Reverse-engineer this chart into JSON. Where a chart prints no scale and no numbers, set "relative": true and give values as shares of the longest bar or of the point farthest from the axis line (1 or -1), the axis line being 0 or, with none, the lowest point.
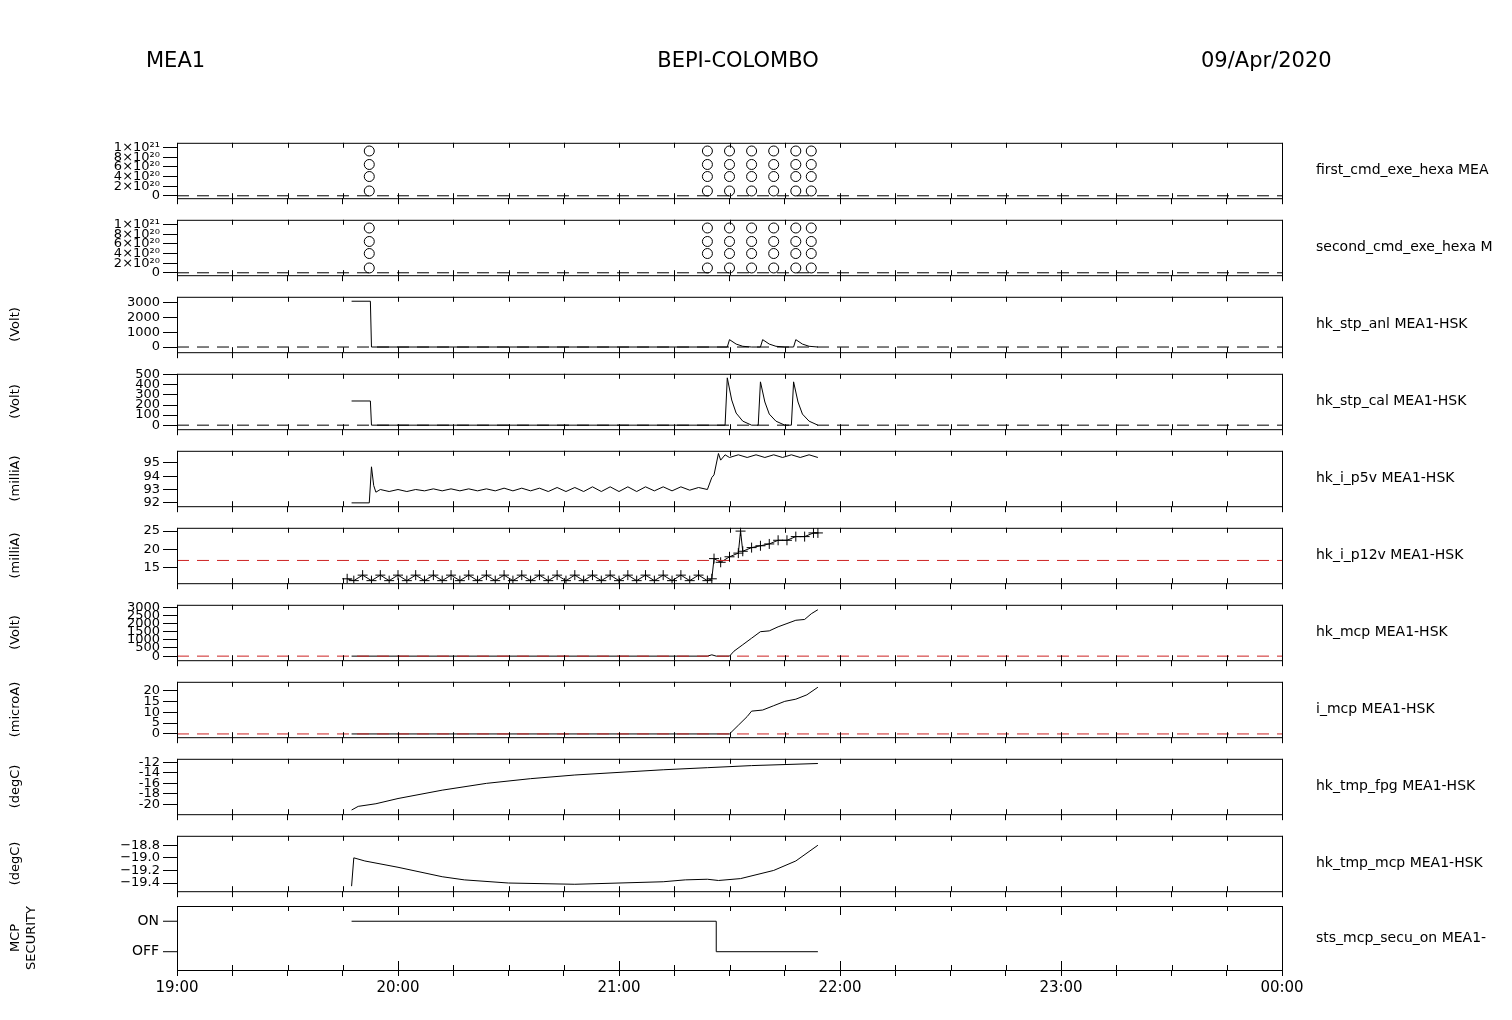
{
  "chart_data": [
    {
      "type": "scatter",
      "title": "BEPI-COLOMBO",
      "annotations": [
        "MEA1",
        "09/Apr/2020"
      ],
      "marker": "circle",
      "tick_labels": "y",
      "xlim": [
        19,
        24
      ],
      "xticks": [
        {
          "value": 19,
          "label": null
        },
        {
          "value": 19.25,
          "label": null
        },
        {
          "value": 19.5,
          "label": null
        },
        {
          "value": 19.75,
          "label": null
        },
        {
          "value": 20,
          "label": null
        },
        {
          "value": 20.25,
          "label": null
        },
        {
          "value": 20.5,
          "label": null
        },
        {
          "value": 20.75,
          "label": null
        },
        {
          "value": 21,
          "label": null
        },
        {
          "value": 21.25,
          "label": null
        },
        {
          "value": 21.5,
          "label": null
        },
        {
          "value": 21.75,
          "label": null
        },
        {
          "value": 22,
          "label": null
        },
        {
          "value": 22.25,
          "label": null
        },
        {
          "value": 22.5,
          "label": null
        },
        {
          "value": 22.75,
          "label": null
        },
        {
          "value": 23,
          "label": null
        },
        {
          "value": 23.25,
          "label": null
        },
        {
          "value": 23.5,
          "label": null
        },
        {
          "value": 23.75,
          "label": null
        },
        {
          "value": 24,
          "label": null
        }
      ],
      "ylim": [
        -5e+19,
        1.1e+21
      ],
      "yticks": [
        0,
        {
          "value": 2e+20,
          "label": "2×10²⁰"
        },
        {
          "value": 4e+20,
          "label": "4×10²⁰"
        },
        {
          "value": 6e+20,
          "label": "6×10²⁰"
        },
        {
          "value": 8e+20,
          "label": "8×10²⁰"
        },
        {
          "value": 1e+21,
          "label": "1×10²¹"
        }
      ],
      "ref_lines": [
        {
          "axis": "y",
          "value": 0,
          "color": "#000000",
          "line_style": "dashed"
        }
      ],
      "series": [
        {
          "name": "first_cmd_exe_hexa MEA",
          "color": "#000000",
          "x": [
            19.87,
            19.87,
            19.87,
            19.87,
            21.4,
            21.4,
            21.4,
            21.4,
            21.5,
            21.5,
            21.5,
            21.5,
            21.6,
            21.6,
            21.6,
            21.6,
            21.7,
            21.7,
            21.7,
            21.7,
            21.8,
            21.8,
            21.8,
            21.8,
            21.87,
            21.87,
            21.87,
            21.87
          ],
          "values": [
            1e+20,
            4e+20,
            6.5e+20,
            9.3e+20,
            1e+20,
            4e+20,
            6.5e+20,
            9.3e+20,
            1e+20,
            4e+20,
            6.5e+20,
            9.3e+20,
            1e+20,
            4e+20,
            6.5e+20,
            9.3e+20,
            1e+20,
            4e+20,
            6.5e+20,
            9.3e+20,
            1e+20,
            4e+20,
            6.5e+20,
            9.3e+20,
            1e+20,
            4e+20,
            6.5e+20,
            9.3e+20
          ]
        }
      ]
    },
    {
      "type": "scatter",
      "marker": "circle",
      "tick_labels": "y",
      "xlim": [
        19,
        24
      ],
      "xticks": [
        {
          "value": 19,
          "label": null
        },
        {
          "value": 19.25,
          "label": null
        },
        {
          "value": 19.5,
          "label": null
        },
        {
          "value": 19.75,
          "label": null
        },
        {
          "value": 20,
          "label": null
        },
        {
          "value": 20.25,
          "label": null
        },
        {
          "value": 20.5,
          "label": null
        },
        {
          "value": 20.75,
          "label": null
        },
        {
          "value": 21,
          "label": null
        },
        {
          "value": 21.25,
          "label": null
        },
        {
          "value": 21.5,
          "label": null
        },
        {
          "value": 21.75,
          "label": null
        },
        {
          "value": 22,
          "label": null
        },
        {
          "value": 22.25,
          "label": null
        },
        {
          "value": 22.5,
          "label": null
        },
        {
          "value": 22.75,
          "label": null
        },
        {
          "value": 23,
          "label": null
        },
        {
          "value": 23.25,
          "label": null
        },
        {
          "value": 23.5,
          "label": null
        },
        {
          "value": 23.75,
          "label": null
        },
        {
          "value": 24,
          "label": null
        }
      ],
      "ylim": [
        -5e+19,
        1.1e+21
      ],
      "yticks": [
        0,
        {
          "value": 2e+20,
          "label": "2×10²⁰"
        },
        {
          "value": 4e+20,
          "label": "4×10²⁰"
        },
        {
          "value": 6e+20,
          "label": "6×10²⁰"
        },
        {
          "value": 8e+20,
          "label": "8×10²⁰"
        },
        {
          "value": 1e+21,
          "label": "1×10²¹"
        }
      ],
      "ref_lines": [
        {
          "axis": "y",
          "value": 0,
          "color": "#000000",
          "line_style": "dashed"
        }
      ],
      "series": [
        {
          "name": "second_cmd_exe_hexa M",
          "color": "#000000",
          "x": [
            19.87,
            19.87,
            19.87,
            19.87,
            21.4,
            21.4,
            21.4,
            21.4,
            21.5,
            21.5,
            21.5,
            21.5,
            21.6,
            21.6,
            21.6,
            21.6,
            21.7,
            21.7,
            21.7,
            21.7,
            21.8,
            21.8,
            21.8,
            21.8,
            21.87,
            21.87,
            21.87,
            21.87
          ],
          "values": [
            1e+20,
            4e+20,
            6.5e+20,
            9.3e+20,
            1e+20,
            4e+20,
            6.5e+20,
            9.3e+20,
            1e+20,
            4e+20,
            6.5e+20,
            9.3e+20,
            1e+20,
            4e+20,
            6.5e+20,
            9.3e+20,
            1e+20,
            4e+20,
            6.5e+20,
            9.3e+20,
            1e+20,
            4e+20,
            6.5e+20,
            9.3e+20,
            1e+20,
            4e+20,
            6.5e+20,
            9.3e+20
          ]
        }
      ]
    },
    {
      "type": "line",
      "ylabel": "(Volt)",
      "tick_labels": "y",
      "xlim": [
        19,
        24
      ],
      "xticks": [
        {
          "value": 19,
          "label": null
        },
        {
          "value": 19.25,
          "label": null
        },
        {
          "value": 19.5,
          "label": null
        },
        {
          "value": 19.75,
          "label": null
        },
        {
          "value": 20,
          "label": null
        },
        {
          "value": 20.25,
          "label": null
        },
        {
          "value": 20.5,
          "label": null
        },
        {
          "value": 20.75,
          "label": null
        },
        {
          "value": 21,
          "label": null
        },
        {
          "value": 21.25,
          "label": null
        },
        {
          "value": 21.5,
          "label": null
        },
        {
          "value": 21.75,
          "label": null
        },
        {
          "value": 22,
          "label": null
        },
        {
          "value": 22.25,
          "label": null
        },
        {
          "value": 22.5,
          "label": null
        },
        {
          "value": 22.75,
          "label": null
        },
        {
          "value": 23,
          "label": null
        },
        {
          "value": 23.25,
          "label": null
        },
        {
          "value": 23.5,
          "label": null
        },
        {
          "value": 23.75,
          "label": null
        },
        {
          "value": 24,
          "label": null
        }
      ],
      "ylim": [
        -350,
        3400
      ],
      "yticks": [
        0,
        1000,
        2000,
        3000
      ],
      "ref_lines": [
        {
          "axis": "y",
          "value": 0,
          "color": "#000000",
          "line_style": "dashed"
        }
      ],
      "series": [
        {
          "name": "hk_stp_anl MEA1-HSK",
          "color": "#000000",
          "x": [
            19.79,
            19.875,
            19.88,
            21.49,
            21.5,
            21.53,
            21.56,
            21.6,
            21.64,
            21.65,
            21.68,
            21.71,
            21.75,
            21.79,
            21.8,
            21.83,
            21.86,
            21.9
          ],
          "values": [
            3100,
            3100,
            0,
            0,
            500,
            200,
            50,
            0,
            0,
            500,
            200,
            50,
            0,
            0,
            500,
            200,
            50,
            0
          ]
        }
      ]
    },
    {
      "type": "line",
      "ylabel": "(Volt)",
      "tick_labels": "y",
      "xlim": [
        19,
        24
      ],
      "xticks": [
        {
          "value": 19,
          "label": null
        },
        {
          "value": 19.25,
          "label": null
        },
        {
          "value": 19.5,
          "label": null
        },
        {
          "value": 19.75,
          "label": null
        },
        {
          "value": 20,
          "label": null
        },
        {
          "value": 20.25,
          "label": null
        },
        {
          "value": 20.5,
          "label": null
        },
        {
          "value": 20.75,
          "label": null
        },
        {
          "value": 21,
          "label": null
        },
        {
          "value": 21.25,
          "label": null
        },
        {
          "value": 21.5,
          "label": null
        },
        {
          "value": 21.75,
          "label": null
        },
        {
          "value": 22,
          "label": null
        },
        {
          "value": 22.25,
          "label": null
        },
        {
          "value": 22.5,
          "label": null
        },
        {
          "value": 22.75,
          "label": null
        },
        {
          "value": 23,
          "label": null
        },
        {
          "value": 23.25,
          "label": null
        },
        {
          "value": 23.5,
          "label": null
        },
        {
          "value": 23.75,
          "label": null
        },
        {
          "value": 24,
          "label": null
        }
      ],
      "ylim": [
        -40,
        510
      ],
      "yticks": [
        0,
        100,
        200,
        300,
        400,
        500
      ],
      "ref_lines": [
        {
          "axis": "y",
          "value": 0,
          "color": "#000000",
          "line_style": "dashed"
        }
      ],
      "series": [
        {
          "name": "hk_stp_cal MEA1-HSK",
          "color": "#000000",
          "x": [
            19.79,
            19.875,
            19.88,
            21.48,
            21.49,
            21.51,
            21.53,
            21.56,
            21.6,
            21.63,
            21.64,
            21.66,
            21.68,
            21.71,
            21.75,
            21.78,
            21.79,
            21.81,
            21.83,
            21.86,
            21.9
          ],
          "values": [
            240,
            240,
            0,
            0,
            470,
            250,
            120,
            40,
            0,
            0,
            430,
            230,
            110,
            40,
            0,
            0,
            430,
            230,
            110,
            40,
            0
          ]
        }
      ]
    },
    {
      "type": "line",
      "ylabel": "(milliA)",
      "tick_labels": "y",
      "xlim": [
        19,
        24
      ],
      "xticks": [
        {
          "value": 19,
          "label": null
        },
        {
          "value": 19.25,
          "label": null
        },
        {
          "value": 19.5,
          "label": null
        },
        {
          "value": 19.75,
          "label": null
        },
        {
          "value": 20,
          "label": null
        },
        {
          "value": 20.25,
          "label": null
        },
        {
          "value": 20.5,
          "label": null
        },
        {
          "value": 20.75,
          "label": null
        },
        {
          "value": 21,
          "label": null
        },
        {
          "value": 21.25,
          "label": null
        },
        {
          "value": 21.5,
          "label": null
        },
        {
          "value": 21.75,
          "label": null
        },
        {
          "value": 22,
          "label": null
        },
        {
          "value": 22.25,
          "label": null
        },
        {
          "value": 22.5,
          "label": null
        },
        {
          "value": 22.75,
          "label": null
        },
        {
          "value": 23,
          "label": null
        },
        {
          "value": 23.25,
          "label": null
        },
        {
          "value": 23.5,
          "label": null
        },
        {
          "value": 23.75,
          "label": null
        },
        {
          "value": 24,
          "label": null
        }
      ],
      "ylim": [
        91.75,
        95.9
      ],
      "yticks": [
        92,
        93,
        94,
        95
      ],
      "series": [
        {
          "name": "hk_i_p5v MEA1-HSK",
          "color": "#000000",
          "x": [
            19.79,
            19.87,
            19.88,
            19.89,
            19.9,
            19.92,
            19.96,
            20.0,
            20.04,
            20.08,
            20.12,
            20.16,
            20.2,
            20.24,
            20.28,
            20.32,
            20.36,
            20.4,
            20.44,
            20.48,
            20.52,
            20.56,
            20.6,
            20.64,
            20.68,
            20.72,
            20.76,
            20.8,
            20.84,
            20.88,
            20.92,
            20.96,
            21.0,
            21.04,
            21.08,
            21.12,
            21.16,
            21.2,
            21.24,
            21.28,
            21.32,
            21.36,
            21.4,
            21.42,
            21.43,
            21.45,
            21.46,
            21.48,
            21.5,
            21.54,
            21.58,
            21.62,
            21.66,
            21.7,
            21.74,
            21.78,
            21.82,
            21.86,
            21.9
          ],
          "values": [
            92.0,
            92.0,
            94.7,
            93.3,
            92.8,
            93.0,
            92.85,
            93.0,
            92.85,
            93.0,
            92.9,
            93.05,
            92.9,
            93.05,
            92.9,
            93.05,
            92.9,
            93.05,
            92.9,
            93.1,
            92.9,
            93.1,
            92.9,
            93.1,
            92.85,
            93.15,
            92.85,
            93.15,
            92.85,
            93.2,
            92.85,
            93.2,
            92.85,
            93.2,
            92.85,
            93.2,
            92.9,
            93.2,
            92.9,
            93.2,
            92.95,
            93.15,
            93.0,
            93.9,
            94.1,
            95.7,
            95.2,
            95.6,
            95.4,
            95.6,
            95.4,
            95.6,
            95.4,
            95.6,
            95.4,
            95.6,
            95.4,
            95.6,
            95.4
          ]
        }
      ]
    },
    {
      "type": "line",
      "ylabel": "(milliA)",
      "marker": "cross",
      "tick_labels": "y",
      "xlim": [
        19,
        24
      ],
      "xticks": [
        {
          "value": 19,
          "label": null
        },
        {
          "value": 19.25,
          "label": null
        },
        {
          "value": 19.5,
          "label": null
        },
        {
          "value": 19.75,
          "label": null
        },
        {
          "value": 20,
          "label": null
        },
        {
          "value": 20.25,
          "label": null
        },
        {
          "value": 20.5,
          "label": null
        },
        {
          "value": 20.75,
          "label": null
        },
        {
          "value": 21,
          "label": null
        },
        {
          "value": 21.25,
          "label": null
        },
        {
          "value": 21.5,
          "label": null
        },
        {
          "value": 21.75,
          "label": null
        },
        {
          "value": 22,
          "label": null
        },
        {
          "value": 22.25,
          "label": null
        },
        {
          "value": 22.5,
          "label": null
        },
        {
          "value": 22.75,
          "label": null
        },
        {
          "value": 23,
          "label": null
        },
        {
          "value": 23.25,
          "label": null
        },
        {
          "value": 23.5,
          "label": null
        },
        {
          "value": 23.75,
          "label": null
        },
        {
          "value": 24,
          "label": null
        }
      ],
      "ylim": [
        10.8,
        25.9
      ],
      "yticks": [
        15,
        20,
        25
      ],
      "ref_lines": [
        {
          "axis": "y",
          "value": 17,
          "color": "#cc2222",
          "line_style": "dashed"
        }
      ],
      "series": [
        {
          "name": "hk_i_p12v MEA1-HSK",
          "color": "#000000",
          "x": [
            19.77,
            19.8,
            19.84,
            19.88,
            19.92,
            19.96,
            20.0,
            20.04,
            20.08,
            20.12,
            20.16,
            20.2,
            20.24,
            20.28,
            20.32,
            20.36,
            20.4,
            20.44,
            20.48,
            20.52,
            20.56,
            20.6,
            20.64,
            20.68,
            20.72,
            20.76,
            20.8,
            20.84,
            20.88,
            20.92,
            20.96,
            21.0,
            21.04,
            21.08,
            21.12,
            21.16,
            21.2,
            21.24,
            21.28,
            21.32,
            21.36,
            21.4,
            21.42,
            21.43,
            21.46,
            21.5,
            21.54,
            21.55,
            21.56,
            21.6,
            21.64,
            21.68,
            21.72,
            21.76,
            21.8,
            21.84,
            21.88,
            21.9
          ],
          "values": [
            12,
            11.5,
            13,
            11.5,
            13,
            11.5,
            13,
            11.5,
            13,
            11.5,
            13,
            11.5,
            13,
            11.5,
            13,
            11.5,
            13,
            11.5,
            13,
            11.5,
            13,
            11.5,
            13,
            11.5,
            13,
            11.5,
            13,
            11.5,
            13,
            11.5,
            13,
            11.5,
            13,
            11.5,
            13,
            11.5,
            13,
            11.5,
            13,
            11.5,
            13,
            11.5,
            12,
            17.5,
            16.5,
            18,
            19,
            25,
            19.5,
            20.5,
            21,
            21.5,
            22.5,
            22.5,
            23.5,
            23.5,
            24.5,
            24.5
          ]
        }
      ]
    },
    {
      "type": "line",
      "ylabel": "(Volt)",
      "tick_labels": "y",
      "xlim": [
        19,
        24
      ],
      "xticks": [
        {
          "value": 19,
          "label": null
        },
        {
          "value": 19.25,
          "label": null
        },
        {
          "value": 19.5,
          "label": null
        },
        {
          "value": 19.75,
          "label": null
        },
        {
          "value": 20,
          "label": null
        },
        {
          "value": 20.25,
          "label": null
        },
        {
          "value": 20.5,
          "label": null
        },
        {
          "value": 20.75,
          "label": null
        },
        {
          "value": 21,
          "label": null
        },
        {
          "value": 21.25,
          "label": null
        },
        {
          "value": 21.5,
          "label": null
        },
        {
          "value": 21.75,
          "label": null
        },
        {
          "value": 22,
          "label": null
        },
        {
          "value": 22.25,
          "label": null
        },
        {
          "value": 22.5,
          "label": null
        },
        {
          "value": 22.75,
          "label": null
        },
        {
          "value": 23,
          "label": null
        },
        {
          "value": 23.25,
          "label": null
        },
        {
          "value": 23.5,
          "label": null
        },
        {
          "value": 23.75,
          "label": null
        },
        {
          "value": 24,
          "label": null
        }
      ],
      "ylim": [
        -250,
        3150
      ],
      "yticks": [
        0,
        500,
        1000,
        1500,
        2000,
        2500,
        3000
      ],
      "ref_lines": [
        {
          "axis": "y",
          "value": 0,
          "color": "#cc2222",
          "line_style": "dashed"
        }
      ],
      "series": [
        {
          "name": "hk_mcp MEA1-HSK",
          "color": "#000000",
          "x": [
            19.79,
            21.4,
            21.42,
            21.44,
            21.48,
            21.5,
            21.52,
            21.56,
            21.6,
            21.64,
            21.68,
            21.72,
            21.76,
            21.8,
            21.84,
            21.87,
            21.9
          ],
          "values": [
            0,
            0,
            80,
            0,
            0,
            0,
            300,
            700,
            1100,
            1500,
            1550,
            1800,
            2000,
            2200,
            2250,
            2600,
            2850
          ]
        }
      ]
    },
    {
      "type": "line",
      "ylabel": "(microA)",
      "tick_labels": "y",
      "xlim": [
        19,
        24
      ],
      "xticks": [
        {
          "value": 19,
          "label": null
        },
        {
          "value": 19.25,
          "label": null
        },
        {
          "value": 19.5,
          "label": null
        },
        {
          "value": 19.75,
          "label": null
        },
        {
          "value": 20,
          "label": null
        },
        {
          "value": 20.25,
          "label": null
        },
        {
          "value": 20.5,
          "label": null
        },
        {
          "value": 20.75,
          "label": null
        },
        {
          "value": 21,
          "label": null
        },
        {
          "value": 21.25,
          "label": null
        },
        {
          "value": 21.5,
          "label": null
        },
        {
          "value": 21.75,
          "label": null
        },
        {
          "value": 22,
          "label": null
        },
        {
          "value": 22.25,
          "label": null
        },
        {
          "value": 22.5,
          "label": null
        },
        {
          "value": 22.75,
          "label": null
        },
        {
          "value": 23,
          "label": null
        },
        {
          "value": 23.25,
          "label": null
        },
        {
          "value": 23.5,
          "label": null
        },
        {
          "value": 23.75,
          "label": null
        },
        {
          "value": 24,
          "label": null
        }
      ],
      "ylim": [
        -1.5,
        24
      ],
      "yticks": [
        0,
        5,
        10,
        15,
        20
      ],
      "ref_lines": [
        {
          "axis": "y",
          "value": 0,
          "color": "#cc2222",
          "line_style": "dashed"
        }
      ],
      "series": [
        {
          "name": "i_mcp MEA1-HSK",
          "color": "#000000",
          "x": [
            19.79,
            21.5,
            21.54,
            21.58,
            21.6,
            21.65,
            21.7,
            21.75,
            21.8,
            21.85,
            21.9
          ],
          "values": [
            0,
            0,
            4,
            8,
            10.5,
            11,
            13,
            15,
            16,
            18,
            21.5
          ]
        }
      ]
    },
    {
      "type": "line",
      "ylabel": "(degC)",
      "tick_labels": "y",
      "xlim": [
        19,
        24
      ],
      "xticks": [
        {
          "value": 19,
          "label": null
        },
        {
          "value": 19.25,
          "label": null
        },
        {
          "value": 19.5,
          "label": null
        },
        {
          "value": 19.75,
          "label": null
        },
        {
          "value": 20,
          "label": null
        },
        {
          "value": 20.25,
          "label": null
        },
        {
          "value": 20.5,
          "label": null
        },
        {
          "value": 20.75,
          "label": null
        },
        {
          "value": 21,
          "label": null
        },
        {
          "value": 21.25,
          "label": null
        },
        {
          "value": 21.5,
          "label": null
        },
        {
          "value": 21.75,
          "label": null
        },
        {
          "value": 22,
          "label": null
        },
        {
          "value": 22.25,
          "label": null
        },
        {
          "value": 22.5,
          "label": null
        },
        {
          "value": 22.75,
          "label": null
        },
        {
          "value": 23,
          "label": null
        },
        {
          "value": 23.25,
          "label": null
        },
        {
          "value": 23.5,
          "label": null
        },
        {
          "value": 23.75,
          "label": null
        },
        {
          "value": 24,
          "label": null
        }
      ],
      "ylim": [
        -21.9,
        -11.3
      ],
      "yticks": [
        -20,
        -18,
        -16,
        -14,
        -12
      ],
      "series": [
        {
          "name": "hk_tmp_fpg MEA1-HSK",
          "color": "#000000",
          "x": [
            19.79,
            19.82,
            19.9,
            20.0,
            20.2,
            20.4,
            20.6,
            20.8,
            21.0,
            21.2,
            21.4,
            21.6,
            21.9
          ],
          "values": [
            -21.1,
            -20.4,
            -19.9,
            -18.9,
            -17.3,
            -16.0,
            -15.1,
            -14.4,
            -13.9,
            -13.4,
            -13.0,
            -12.6,
            -12.2
          ]
        }
      ]
    },
    {
      "type": "line",
      "ylabel": "(degC)",
      "tick_labels": "y",
      "xlim": [
        19,
        24
      ],
      "xticks": [
        {
          "value": 19,
          "label": null
        },
        {
          "value": 19.25,
          "label": null
        },
        {
          "value": 19.5,
          "label": null
        },
        {
          "value": 19.75,
          "label": null
        },
        {
          "value": 20,
          "label": null
        },
        {
          "value": 20.25,
          "label": null
        },
        {
          "value": 20.5,
          "label": null
        },
        {
          "value": 20.75,
          "label": null
        },
        {
          "value": 21,
          "label": null
        },
        {
          "value": 21.25,
          "label": null
        },
        {
          "value": 21.5,
          "label": null
        },
        {
          "value": 21.75,
          "label": null
        },
        {
          "value": 22,
          "label": null
        },
        {
          "value": 22.25,
          "label": null
        },
        {
          "value": 22.5,
          "label": null
        },
        {
          "value": 22.75,
          "label": null
        },
        {
          "value": 23,
          "label": null
        },
        {
          "value": 23.25,
          "label": null
        },
        {
          "value": 23.5,
          "label": null
        },
        {
          "value": 23.75,
          "label": null
        },
        {
          "value": 24,
          "label": null
        }
      ],
      "ylim": [
        -19.53,
        -18.65
      ],
      "yticks": [
        {
          "value": -19.4,
          "label": "−19.4"
        },
        {
          "value": -19.2,
          "label": "−19.2"
        },
        {
          "value": -19.0,
          "label": "−19.0"
        },
        {
          "value": -18.8,
          "label": "−18.8"
        }
      ],
      "series": [
        {
          "name": "hk_tmp_mcp MEA1-HSK",
          "color": "#000000",
          "x": [
            19.79,
            19.8,
            19.85,
            20.0,
            20.2,
            20.3,
            20.5,
            20.8,
            21.0,
            21.2,
            21.3,
            21.4,
            21.45,
            21.55,
            21.7,
            21.8,
            21.9
          ],
          "values": [
            -19.45,
            -19.0,
            -19.05,
            -19.15,
            -19.3,
            -19.35,
            -19.4,
            -19.42,
            -19.4,
            -19.38,
            -19.35,
            -19.34,
            -19.36,
            -19.33,
            -19.2,
            -19.05,
            -18.8
          ]
        }
      ]
    },
    {
      "type": "step",
      "ylabel": "MCP SECURITY",
      "relative": true,
      "annotations": [
        "ON",
        "OFF"
      ],
      "xlim": [
        19,
        24
      ],
      "xticks": [
        {
          "value": 19,
          "label": "19:00"
        },
        {
          "value": 19.25,
          "label": null
        },
        {
          "value": 19.5,
          "label": null
        },
        {
          "value": 19.75,
          "label": null
        },
        {
          "value": 20,
          "label": "20:00"
        },
        {
          "value": 20.25,
          "label": null
        },
        {
          "value": 20.5,
          "label": null
        },
        {
          "value": 20.75,
          "label": null
        },
        {
          "value": 21,
          "label": "21:00"
        },
        {
          "value": 21.25,
          "label": null
        },
        {
          "value": 21.5,
          "label": null
        },
        {
          "value": 21.75,
          "label": null
        },
        {
          "value": 22,
          "label": "22:00"
        },
        {
          "value": 22.25,
          "label": null
        },
        {
          "value": 22.5,
          "label": null
        },
        {
          "value": 22.75,
          "label": null
        },
        {
          "value": 23,
          "label": "23:00"
        },
        {
          "value": 23.25,
          "label": null
        },
        {
          "value": 23.5,
          "label": null
        },
        {
          "value": 23.75,
          "label": null
        },
        {
          "value": 24,
          "label": "00:00"
        }
      ],
      "series": [
        {
          "name": "sts_mcp_secu_on MEA1-",
          "color": "#000000",
          "x": [
            19.79,
            21.43,
            21.44,
            21.9
          ],
          "values": [
            1,
            1,
            0,
            0
          ]
        }
      ]
    }
  ]
}
